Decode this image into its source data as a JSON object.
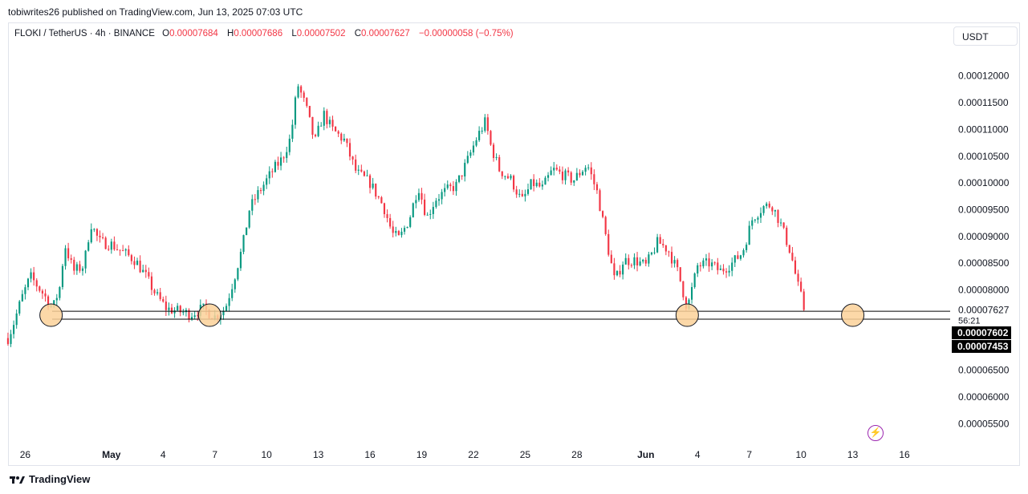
{
  "publisher_line": "tobiwrites26 published on TradingView.com, Jun 13, 2025 07:03 UTC",
  "legend": {
    "symbol": "FLOKI / TetherUS · 4h · BINANCE",
    "o_label": "O",
    "o_value": "0.00007684",
    "h_label": "H",
    "h_value": "0.00007686",
    "l_label": "L",
    "l_value": "0.00007502",
    "c_label": "C",
    "c_value": "0.00007627",
    "change": "−0.00000058 (−0.75%)"
  },
  "currency_button": "USDT",
  "brand": "TradingView",
  "icons": {
    "alert": "lightning-icon",
    "logo": "tradingview-logo-icon"
  },
  "colors": {
    "up": "#089981",
    "down": "#f23645",
    "marker_fill": "#fcd199",
    "line": "#000000",
    "bolt": "#9c27b0"
  },
  "chart_data": {
    "type": "candlestick",
    "symbol": "FLOKI / TetherUS",
    "interval": "4h",
    "ylim": [
      5.13e-05,
      0.0001255
    ],
    "y_ticks": [
      {
        "value": 5.5e-05,
        "label": "0.00005500"
      },
      {
        "value": 6e-05,
        "label": "0.00006000"
      },
      {
        "value": 6.5e-05,
        "label": "0.00006500"
      },
      {
        "value": 8e-05,
        "label": "0.00008000"
      },
      {
        "value": 8.5e-05,
        "label": "0.00008500"
      },
      {
        "value": 9e-05,
        "label": "0.00009000"
      },
      {
        "value": 9.5e-05,
        "label": "0.00009500"
      },
      {
        "value": 0.0001,
        "label": "0.00010000"
      },
      {
        "value": 0.000105,
        "label": "0.00010500"
      },
      {
        "value": 0.00011,
        "label": "0.00011000"
      },
      {
        "value": 0.000115,
        "label": "0.00011500"
      },
      {
        "value": 0.00012,
        "label": "0.00012000"
      }
    ],
    "x_ticks": [
      {
        "day": 26,
        "label": "26"
      },
      {
        "day": 31,
        "label": "May",
        "bold": true
      },
      {
        "day": 34,
        "label": "4"
      },
      {
        "day": 37,
        "label": "7"
      },
      {
        "day": 40,
        "label": "10"
      },
      {
        "day": 43,
        "label": "13"
      },
      {
        "day": 46,
        "label": "16"
      },
      {
        "day": 49,
        "label": "19"
      },
      {
        "day": 52,
        "label": "22"
      },
      {
        "day": 55,
        "label": "25"
      },
      {
        "day": 58,
        "label": "28"
      },
      {
        "day": 62,
        "label": "Jun",
        "bold": true
      },
      {
        "day": 65,
        "label": "4"
      },
      {
        "day": 68,
        "label": "7"
      },
      {
        "day": 71,
        "label": "10"
      },
      {
        "day": 74,
        "label": "13"
      },
      {
        "day": 77,
        "label": "16"
      }
    ],
    "x_range_days": [
      25.05,
      79.0
    ],
    "support_lines": [
      7.602e-05,
      7.453e-05
    ],
    "price_tags": [
      {
        "value": 7.627e-05,
        "label": "0.00007627",
        "sub": "56:21"
      },
      {
        "value": 7.602e-05,
        "label": "0.00007602"
      },
      {
        "value": 7.453e-05,
        "label": "0.00007453"
      }
    ],
    "touch_markers_day": [
      27.5,
      36.7,
      64.4,
      74.0
    ],
    "price_path": [
      [
        25.0,
        7.1e-05
      ],
      [
        25.3,
        7.35e-05
      ],
      [
        25.8,
        7.85e-05
      ],
      [
        26.3,
        8.25e-05
      ],
      [
        27.0,
        7.95e-05
      ],
      [
        27.6,
        7.65e-05
      ],
      [
        28.0,
        8.05e-05
      ],
      [
        28.3,
        8.85e-05
      ],
      [
        28.8,
        8.35e-05
      ],
      [
        29.4,
        8.45e-05
      ],
      [
        29.8,
        9.25e-05
      ],
      [
        30.3,
        8.9e-05
      ],
      [
        31.0,
        8.85e-05
      ],
      [
        31.7,
        8.7e-05
      ],
      [
        32.4,
        8.55e-05
      ],
      [
        33.0,
        8.25e-05
      ],
      [
        33.6,
        7.9e-05
      ],
      [
        34.2,
        7.65e-05
      ],
      [
        34.9,
        7.6e-05
      ],
      [
        35.6,
        7.55e-05
      ],
      [
        36.3,
        7.65e-05
      ],
      [
        37.0,
        7.5e-05
      ],
      [
        37.6,
        7.65e-05
      ],
      [
        38.1,
        8.2e-05
      ],
      [
        38.6,
        8.8e-05
      ],
      [
        39.0,
        9.5e-05
      ],
      [
        39.4,
        9.75e-05
      ],
      [
        39.8,
        9.95e-05
      ],
      [
        40.4,
        0.0001025
      ],
      [
        40.9,
        0.0001045
      ],
      [
        41.4,
        0.0001085
      ],
      [
        41.8,
        0.0001185
      ],
      [
        42.3,
        0.000114
      ],
      [
        42.8,
        0.0001075
      ],
      [
        43.3,
        0.000113
      ],
      [
        43.8,
        0.00011
      ],
      [
        44.5,
        0.000108
      ],
      [
        45.2,
        0.000102
      ],
      [
        46.0,
        0.0001
      ],
      [
        46.8,
        9.55e-05
      ],
      [
        47.3,
        9.05e-05
      ],
      [
        47.7,
        8.95e-05
      ],
      [
        48.3,
        9.35e-05
      ],
      [
        48.8,
        9.95e-05
      ],
      [
        49.3,
        9.35e-05
      ],
      [
        49.8,
        9.7e-05
      ],
      [
        50.4,
        9.85e-05
      ],
      [
        51.0,
        9.95e-05
      ],
      [
        51.7,
        0.0001045
      ],
      [
        52.2,
        0.0001085
      ],
      [
        52.7,
        0.0001115
      ],
      [
        53.0,
        0.000107
      ],
      [
        53.5,
        0.0001025
      ],
      [
        54.2,
        0.0001005
      ],
      [
        54.8,
        9.65e-05
      ],
      [
        55.4,
        0.0001
      ],
      [
        56.0,
        9.9e-05
      ],
      [
        56.6,
        0.0001025
      ],
      [
        57.2,
        0.0001015
      ],
      [
        57.8,
        0.0001005
      ],
      [
        58.6,
        0.0001035
      ],
      [
        59.2,
        9.8e-05
      ],
      [
        59.7,
        8.95e-05
      ],
      [
        60.2,
        8.15e-05
      ],
      [
        60.7,
        8.55e-05
      ],
      [
        61.4,
        8.55e-05
      ],
      [
        62.0,
        8.45e-05
      ],
      [
        62.7,
        8.9e-05
      ],
      [
        63.3,
        8.75e-05
      ],
      [
        63.9,
        8.3e-05
      ],
      [
        64.4,
        7.65e-05
      ],
      [
        65.0,
        8.45e-05
      ],
      [
        65.7,
        8.5e-05
      ],
      [
        66.3,
        8.35e-05
      ],
      [
        67.0,
        8.5e-05
      ],
      [
        67.6,
        8.7e-05
      ],
      [
        68.2,
        9.35e-05
      ],
      [
        68.8,
        9.55e-05
      ],
      [
        69.3,
        9.6e-05
      ],
      [
        69.8,
        9.25e-05
      ],
      [
        70.4,
        8.7e-05
      ],
      [
        70.8,
        8.1e-05
      ],
      [
        71.2,
        7.65e-05
      ]
    ]
  }
}
